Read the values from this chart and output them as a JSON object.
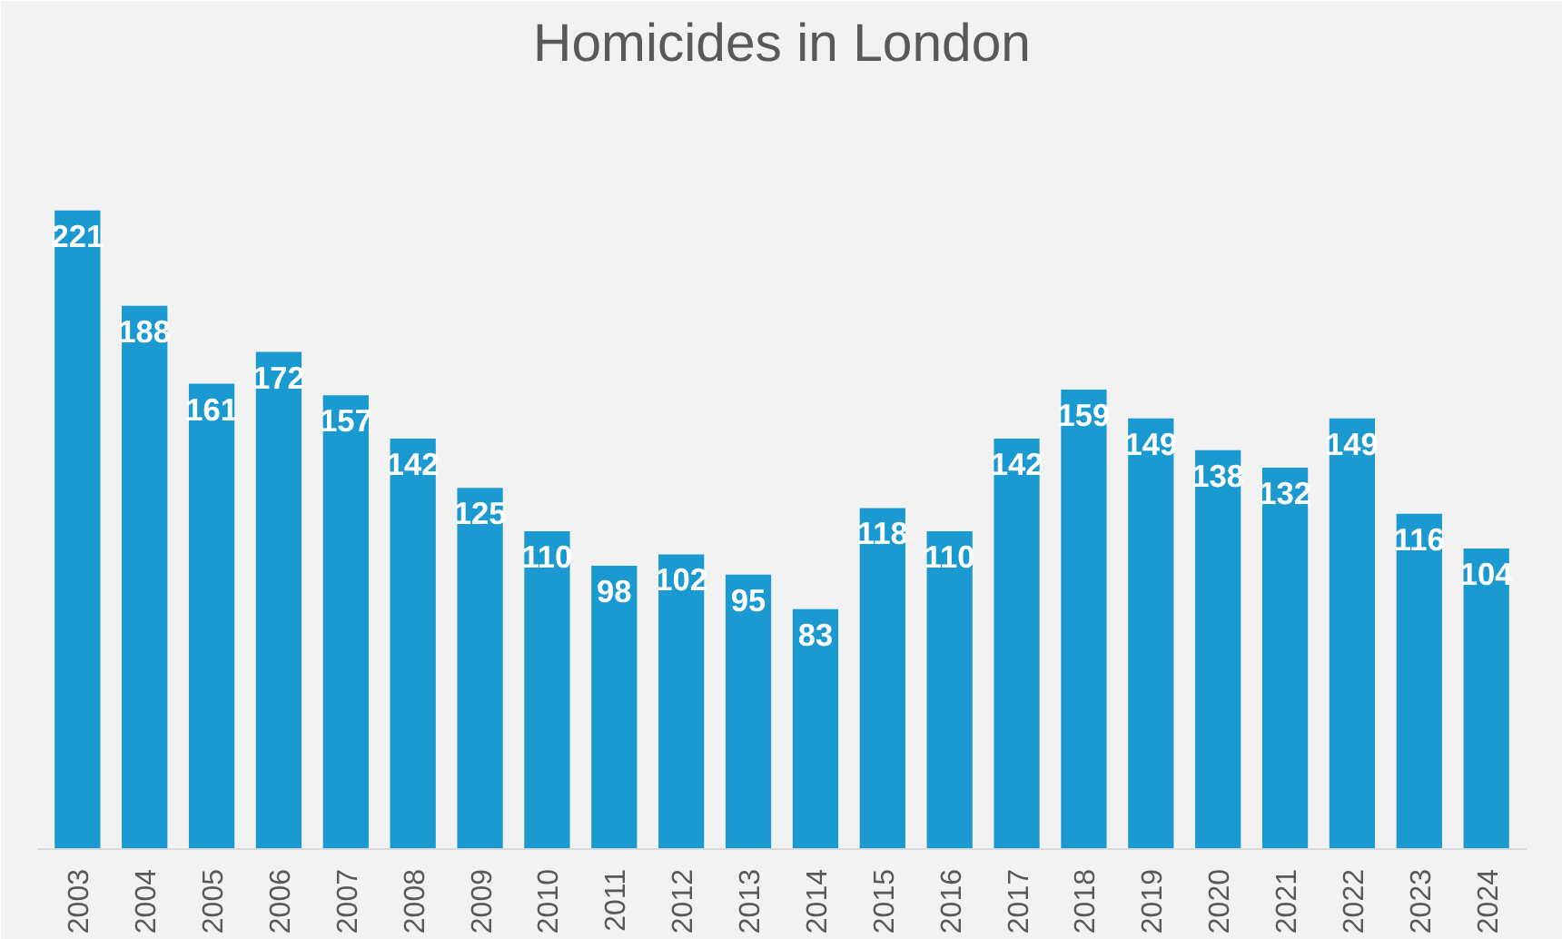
{
  "chart_data": {
    "type": "bar",
    "title": "Homicides in London",
    "categories": [
      "2003",
      "2004",
      "2005",
      "2006",
      "2007",
      "2008",
      "2009",
      "2010",
      "2011",
      "2012",
      "2013",
      "2014",
      "2015",
      "2016",
      "2017",
      "2018",
      "2019",
      "2020",
      "2021",
      "2022",
      "2023",
      "2024"
    ],
    "values": [
      221,
      188,
      161,
      172,
      157,
      142,
      125,
      110,
      98,
      102,
      95,
      83,
      118,
      110,
      142,
      159,
      149,
      138,
      132,
      149,
      116,
      104
    ],
    "color": "#1a9ad0",
    "data_labels": true
  }
}
